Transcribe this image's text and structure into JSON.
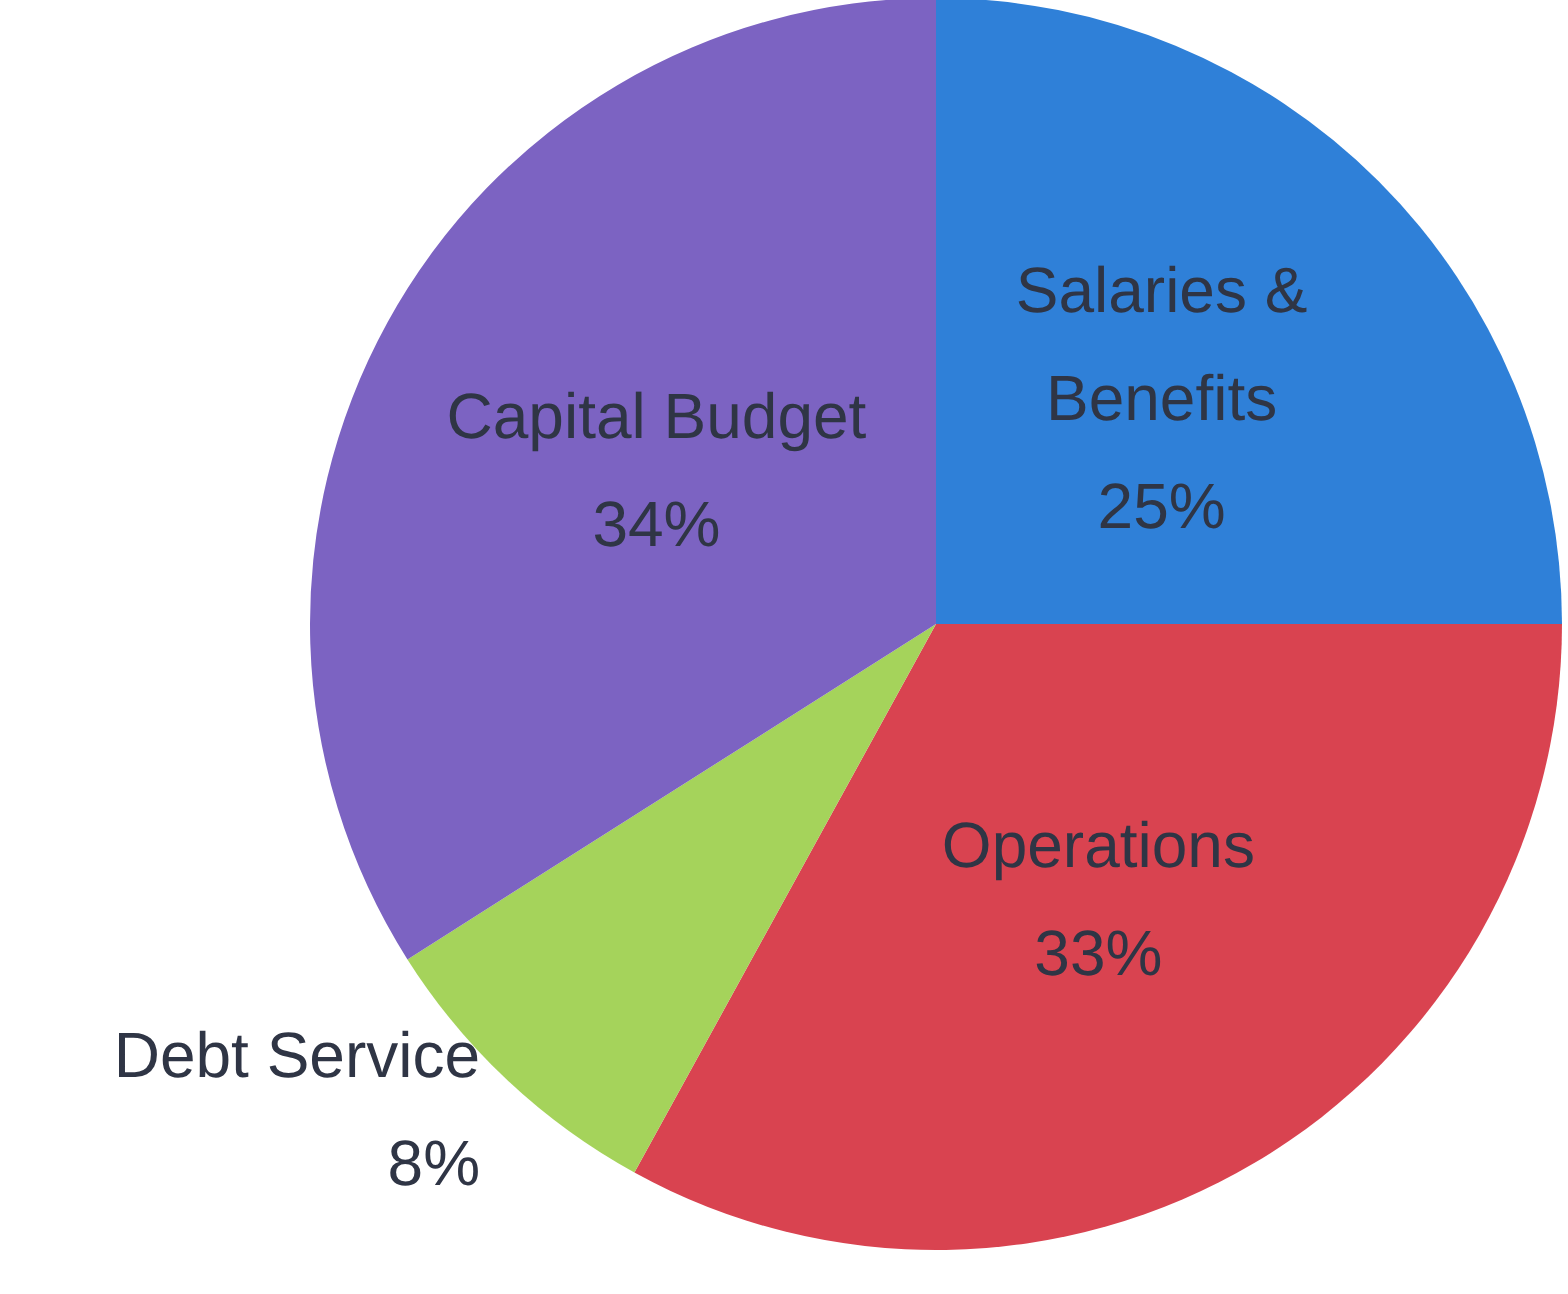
{
  "chart_data": {
    "type": "pie",
    "categories": [
      "Salaries & Benefits",
      "Operations",
      "Debt Service",
      "Capital Budget"
    ],
    "values": [
      25,
      33,
      8,
      34
    ],
    "value_labels": [
      "25%",
      "33%",
      "8%",
      "34%"
    ],
    "colors": [
      "#2f80d8",
      "#d94350",
      "#a5d35b",
      "#7c63c2"
    ],
    "legend": false
  }
}
